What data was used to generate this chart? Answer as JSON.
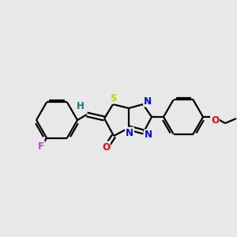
{
  "background_color": "#e8e8e8",
  "bond_color": "#000000",
  "atom_colors": {
    "O": "#ff0000",
    "N": "#0000ff",
    "S": "#cccc00",
    "F": "#cc44cc",
    "H": "#008080",
    "C": "#000000"
  },
  "figsize": [
    3.0,
    3.0
  ],
  "dpi": 100
}
